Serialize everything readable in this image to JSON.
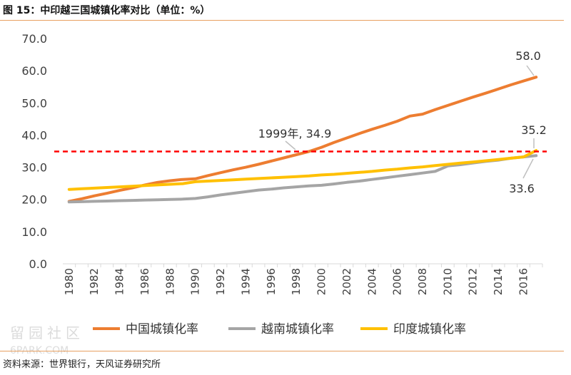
{
  "figure": {
    "title": "图 15：中印越三国城镇化率对比（单位：%）",
    "source": "资料来源：世界银行，天风证券研究所",
    "watermark": "6PARK.COM"
  },
  "chart_data": {
    "type": "line",
    "title": "图 15：中印越三国城镇化率对比（单位：%）",
    "xlabel": "",
    "ylabel": "",
    "ylim": [
      0,
      70
    ],
    "yticks": [
      "0.0",
      "10.0",
      "20.0",
      "30.0",
      "40.0",
      "50.0",
      "60.0",
      "70.0"
    ],
    "x_tick_labels": [
      "1980",
      "1982",
      "1984",
      "1986",
      "1988",
      "1990",
      "1992",
      "1994",
      "1996",
      "1998",
      "2000",
      "2002",
      "2004",
      "2006",
      "2008",
      "2010",
      "2012",
      "2014",
      "2016"
    ],
    "grid": false,
    "legend_position": "bottom",
    "x": [
      1980,
      1981,
      1982,
      1983,
      1984,
      1985,
      1986,
      1987,
      1988,
      1989,
      1990,
      1991,
      1992,
      1993,
      1994,
      1995,
      1996,
      1997,
      1998,
      1999,
      2000,
      2001,
      2002,
      2003,
      2004,
      2005,
      2006,
      2007,
      2008,
      2009,
      2010,
      2011,
      2012,
      2013,
      2014,
      2015,
      2016,
      2017
    ],
    "series": [
      {
        "name": "中国城镇化率",
        "color": "#ed7d31",
        "values": [
          19.4,
          20.2,
          21.1,
          21.9,
          22.8,
          23.6,
          24.5,
          25.3,
          25.8,
          26.2,
          26.4,
          27.4,
          28.3,
          29.2,
          30.0,
          30.9,
          31.9,
          32.9,
          33.9,
          34.9,
          36.2,
          37.7,
          39.1,
          40.5,
          41.8,
          43.0,
          44.3,
          45.9,
          46.5,
          47.9,
          49.2,
          50.5,
          51.8,
          53.0,
          54.3,
          55.6,
          56.8,
          58.0
        ]
      },
      {
        "name": "越南城镇化率",
        "color": "#a5a5a5",
        "values": [
          19.2,
          19.3,
          19.4,
          19.5,
          19.6,
          19.7,
          19.8,
          19.9,
          20.0,
          20.1,
          20.3,
          20.8,
          21.4,
          21.9,
          22.4,
          22.9,
          23.2,
          23.6,
          23.9,
          24.2,
          24.4,
          24.8,
          25.3,
          25.7,
          26.2,
          26.7,
          27.2,
          27.7,
          28.2,
          28.7,
          30.4,
          30.8,
          31.3,
          31.8,
          32.2,
          32.8,
          33.2,
          33.6
        ]
      },
      {
        "name": "印度城镇化率",
        "color": "#ffc000",
        "values": [
          23.1,
          23.3,
          23.5,
          23.7,
          23.9,
          24.1,
          24.3,
          24.5,
          24.7,
          24.9,
          25.5,
          25.7,
          25.9,
          26.1,
          26.3,
          26.5,
          26.7,
          26.9,
          27.1,
          27.3,
          27.6,
          27.8,
          28.1,
          28.4,
          28.7,
          29.1,
          29.4,
          29.8,
          30.1,
          30.5,
          30.9,
          31.3,
          31.6,
          32.0,
          32.4,
          32.8,
          33.2,
          35.2
        ]
      }
    ],
    "reference_line": {
      "y": 34.9,
      "color": "#ff0000",
      "style": "dashed"
    },
    "annotations": [
      {
        "text": "58.0",
        "x": 2017,
        "y": 58.0
      },
      {
        "text": "1999年, 34.9",
        "x": 1999,
        "y": 34.9
      },
      {
        "text": "35.2",
        "x": 2017,
        "y": 35.2
      },
      {
        "text": "33.6",
        "x": 2017,
        "y": 33.6
      }
    ]
  }
}
